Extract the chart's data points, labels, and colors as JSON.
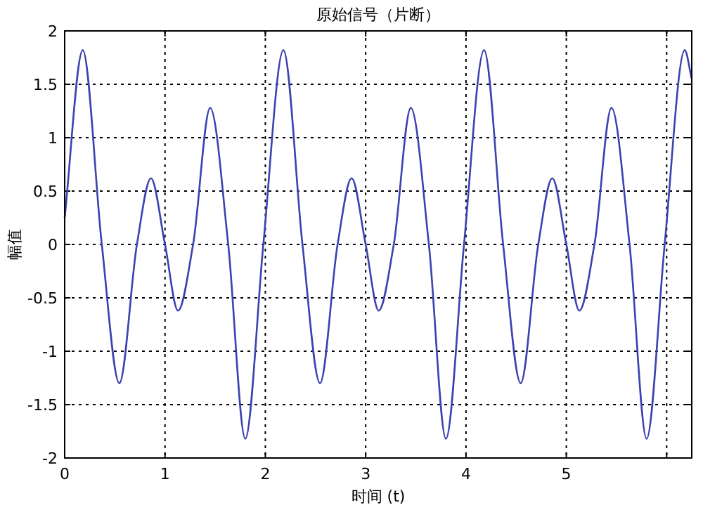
{
  "chart_data": {
    "type": "line",
    "title": "原始信号（片断）",
    "xlabel": "时间 (t)",
    "ylabel": "幅值",
    "x": [
      0,
      0.18,
      0.37,
      0.545,
      0.72,
      0.86,
      1.0,
      1.13,
      1.28,
      1.45,
      1.63,
      1.8,
      1.98,
      2.18,
      2.37,
      2.545,
      2.72,
      2.86,
      3.0,
      3.13,
      3.28,
      3.45,
      3.63,
      3.8,
      3.98,
      4.18,
      4.37,
      4.545,
      4.72,
      4.86,
      5.0,
      5.13,
      5.28,
      5.45,
      5.63,
      5.8,
      5.98,
      6.18,
      6.25
    ],
    "series": [
      {
        "color": "#3c42b0",
        "values": [
          0.25,
          1.82,
          0,
          -1.3,
          0,
          0.62,
          0,
          -0.62,
          0,
          1.28,
          0,
          -1.82,
          0,
          1.82,
          0,
          -1.3,
          0,
          0.62,
          0,
          -0.62,
          0,
          1.28,
          0,
          -1.82,
          0,
          1.82,
          0,
          -1.3,
          0,
          0.62,
          0,
          -0.62,
          0,
          1.28,
          0,
          -1.82,
          0,
          1.82,
          1.55
        ]
      }
    ],
    "xlim": [
      0,
      6.25
    ],
    "ylim": [
      -2,
      2
    ],
    "xticks": [
      0,
      1,
      2,
      3,
      4,
      5,
      {
        "value": 6,
        "label": null
      }
    ],
    "yticks": [
      -2,
      -1.5,
      -1,
      -0.5,
      0,
      0.5,
      1,
      1.5,
      2
    ],
    "grid": true,
    "line_style": "solid",
    "marker": "none"
  }
}
